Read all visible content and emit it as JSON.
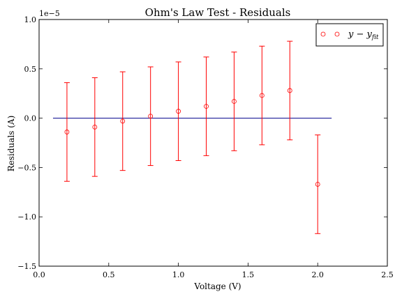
{
  "chart_data": {
    "type": "scatter",
    "title": "Ohm's Law Test - Residuals",
    "xlabel": "Voltage (V)",
    "ylabel": "Residuals (A)",
    "offset_label": "1e−5",
    "xlim": [
      0.0,
      2.5
    ],
    "ylim": [
      -1.5,
      1.0
    ],
    "x_ticks": [
      0.0,
      0.5,
      1.0,
      1.5,
      2.0,
      2.5
    ],
    "x_tick_labels": [
      "0.0",
      "0.5",
      "1.0",
      "1.5",
      "2.0",
      "2.5"
    ],
    "y_ticks": [
      -1.5,
      -1.0,
      -0.5,
      0.0,
      0.5,
      1.0
    ],
    "y_tick_labels": [
      "−1.5",
      "−1.0",
      "−0.5",
      "0.0",
      "0.5",
      "1.0"
    ],
    "grid": false,
    "legend_position": "top-right",
    "series": [
      {
        "name": "y − y_fit",
        "legend_label": "y − y",
        "legend_subscript": "fit",
        "marker": "open-circle",
        "color": "#ff0000",
        "x": [
          0.2,
          0.4,
          0.6,
          0.8,
          1.0,
          1.2,
          1.4,
          1.6,
          1.8,
          2.0
        ],
        "y": [
          -0.14,
          -0.09,
          -0.03,
          0.02,
          0.07,
          0.12,
          0.17,
          0.23,
          0.28,
          -0.67
        ],
        "yerr": 0.5
      }
    ],
    "reference_line": {
      "color": "#00008b",
      "x": [
        0.1,
        2.1
      ],
      "y": [
        0.0,
        0.0
      ]
    }
  }
}
